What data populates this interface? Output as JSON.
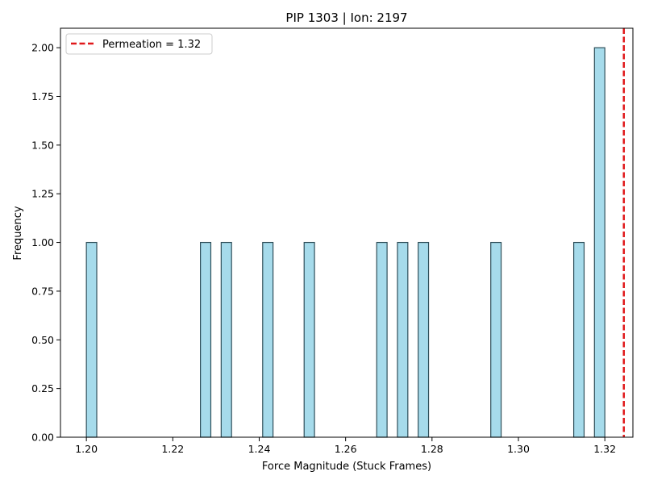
{
  "chart_data": {
    "type": "bar",
    "title": "PIP 1303 | Ion: 2197",
    "xlabel": "Force Magnitude (Stuck Frames)",
    "ylabel": "Frequency",
    "xlim": [
      1.194,
      1.3265
    ],
    "ylim": [
      0,
      2.1
    ],
    "x_ticks": [
      "1.20",
      "1.22",
      "1.24",
      "1.26",
      "1.28",
      "1.30",
      "1.32"
    ],
    "y_ticks": [
      "0.00",
      "0.25",
      "0.50",
      "0.75",
      "1.00",
      "1.25",
      "1.50",
      "1.75",
      "2.00"
    ],
    "bin_width": 0.0024,
    "bins": [
      {
        "x": 1.2,
        "count": 1
      },
      {
        "x": 1.2264,
        "count": 1
      },
      {
        "x": 1.2312,
        "count": 1
      },
      {
        "x": 1.2408,
        "count": 1
      },
      {
        "x": 1.2504,
        "count": 1
      },
      {
        "x": 1.2672,
        "count": 1
      },
      {
        "x": 1.272,
        "count": 1
      },
      {
        "x": 1.2768,
        "count": 1
      },
      {
        "x": 1.2936,
        "count": 1
      },
      {
        "x": 1.3128,
        "count": 1
      },
      {
        "x": 1.3176,
        "count": 2
      }
    ],
    "bar_color": "#a6dbeb",
    "bar_edge_color": "#2f4f5a",
    "reference_line": {
      "label": "Permeation = 1.32",
      "value": 1.3244,
      "color": "#e0191b",
      "style": "dashed"
    },
    "legend_position": "upper-left",
    "grid": false
  }
}
